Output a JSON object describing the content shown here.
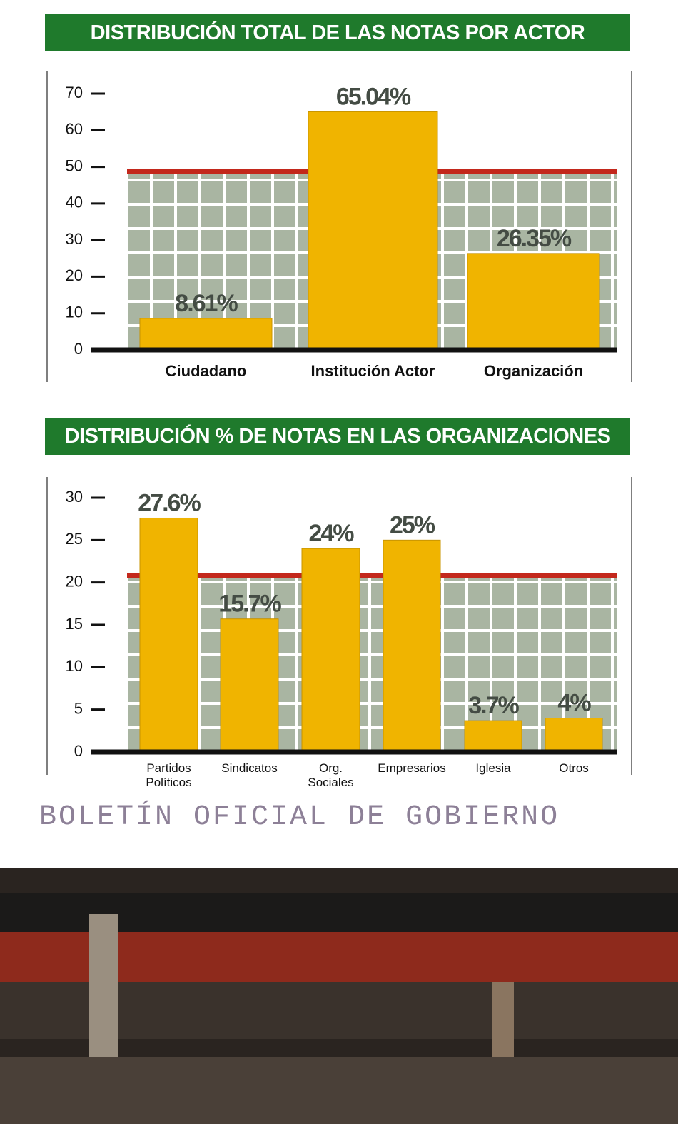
{
  "chart_data": [
    {
      "type": "bar",
      "title": "DISTRIBUCIÓN TOTAL DE LAS NOTAS POR ACTOR",
      "categories": [
        "Ciudadano",
        "Institución Actor",
        "Organización"
      ],
      "values": [
        8.61,
        65.04,
        26.35
      ],
      "value_labels": [
        "8.61%",
        "65.04%",
        "26.35%"
      ],
      "color": "#f0b400",
      "ylim": [
        0,
        70
      ],
      "yticks": [
        0,
        10,
        20,
        30,
        40,
        50,
        60,
        70
      ]
    },
    {
      "type": "bar",
      "title": "DISTRIBUCIÓN % DE NOTAS EN LAS ORGANIZACIONES",
      "categories": [
        "Partidos Políticos",
        "Sindicatos",
        "Org. Sociales",
        "Empresarios",
        "Iglesia",
        "Otros"
      ],
      "values": [
        27.6,
        15.7,
        24,
        25,
        3.7,
        4
      ],
      "value_labels": [
        "27.6%",
        "15.7%",
        "24%",
        "25%",
        "3.7%",
        "4%"
      ],
      "color": "#f0b400",
      "ylim": [
        0,
        30
      ],
      "yticks": [
        0,
        5,
        10,
        15,
        20,
        25,
        30
      ]
    }
  ],
  "caption": "BOLETÍN OFICIAL DE GOBIERNO"
}
